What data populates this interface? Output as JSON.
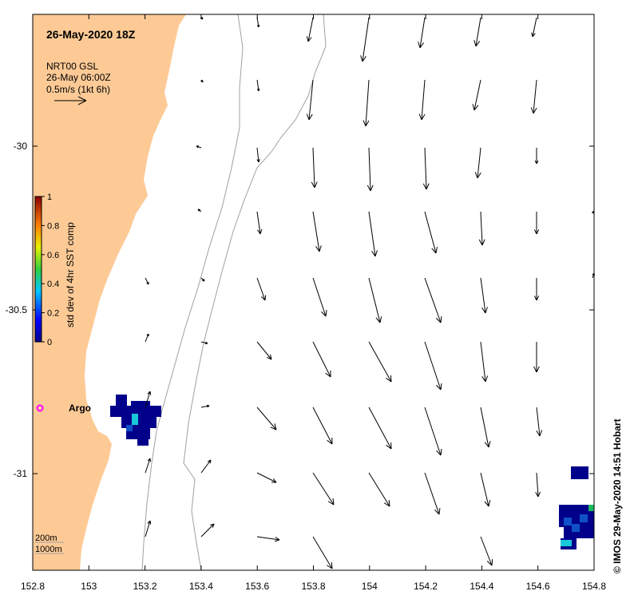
{
  "map": {
    "title": "26-May-2020 18Z",
    "legend_box": {
      "line1": "NRT00 GSL",
      "line2": "26-May 06:00Z",
      "line3": "0.5m/s (1kt 6h)"
    },
    "colorbar": {
      "label": "std dev of 4hr SST comp",
      "ticks": [
        "1",
        "0.8",
        "0.6",
        "0.4",
        "0.2",
        "0"
      ]
    },
    "x_ticks": [
      "152.8",
      "153",
      "153.2",
      "153.4",
      "153.6",
      "153.8",
      "154",
      "154.2",
      "154.4",
      "154.6",
      "154.8"
    ],
    "y_ticks": [
      "-30",
      "-30.5",
      "-31"
    ],
    "argo_label": "Argo",
    "depth_legend": {
      "contour1": "200m",
      "contour2": "1000m"
    },
    "credit": "© IMOS 29-May-2020 14:51 Hobart",
    "colors": {
      "land": "#fdca96",
      "contour": "#a0a0a0",
      "argo": "#ff00ff",
      "sst_dark": "#00008b",
      "sst_mid": "#1050c8",
      "sst_cyan": "#18c8d8",
      "sst_green": "#18b860"
    }
  }
}
